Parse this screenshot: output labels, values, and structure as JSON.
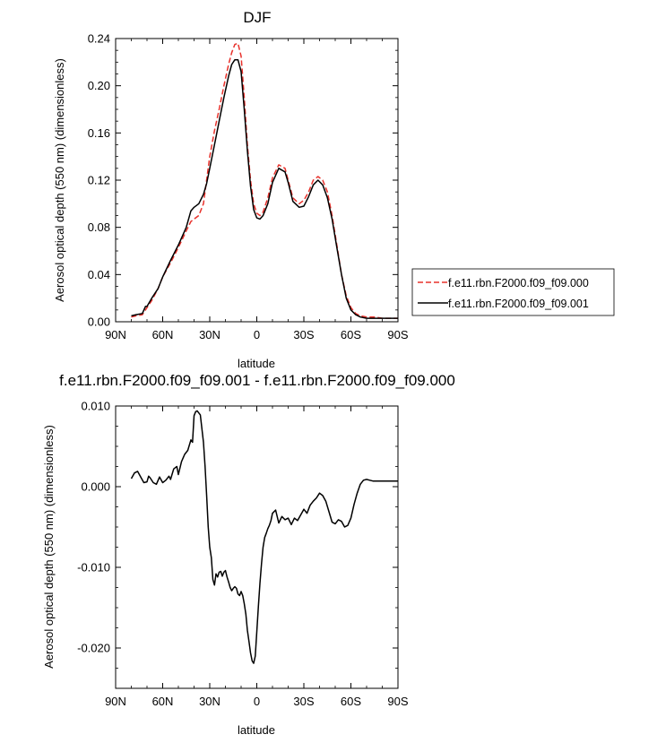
{
  "chart_data": [
    {
      "type": "line",
      "title": "DJF",
      "xlabel": "latitude",
      "ylabel": "Aerosol optical depth (550 nm) (dimensionless)",
      "xlim": [
        90,
        -90
      ],
      "ylim": [
        0,
        0.24
      ],
      "xticks": [
        90,
        60,
        30,
        0,
        -30,
        -60,
        -90
      ],
      "xtick_labels": [
        "90N",
        "60N",
        "30N",
        "0",
        "30S",
        "60S",
        "90S"
      ],
      "yticks": [
        0,
        0.04,
        0.08,
        0.12,
        0.16,
        0.2,
        0.24
      ],
      "ytick_labels": [
        "0.00",
        "0.04",
        "0.08",
        "0.12",
        "0.16",
        "0.20",
        "0.24"
      ],
      "legend_position": "right",
      "series": [
        {
          "name": "f.e11.rbn.F2000.f09_f09.000",
          "color": "#e8322c",
          "dash": "dashed",
          "x": [
            80,
            77,
            73,
            70,
            67,
            63,
            60,
            55,
            50,
            45,
            42,
            40,
            37,
            34,
            32,
            30,
            27,
            24,
            21,
            18,
            16,
            14,
            12,
            10,
            8,
            6,
            4,
            2,
            0,
            -2,
            -4,
            -7,
            -10,
            -14,
            -18,
            -20,
            -23,
            -27,
            -30,
            -33,
            -36,
            -39,
            -42,
            -45,
            -48,
            -51,
            -54,
            -57,
            -60,
            -63,
            -66,
            -70,
            -75,
            -80,
            -85,
            -90
          ],
          "y": [
            0.004,
            0.005,
            0.006,
            0.012,
            0.018,
            0.028,
            0.038,
            0.05,
            0.063,
            0.077,
            0.085,
            0.087,
            0.09,
            0.1,
            0.12,
            0.14,
            0.162,
            0.18,
            0.2,
            0.218,
            0.228,
            0.235,
            0.236,
            0.225,
            0.19,
            0.15,
            0.12,
            0.1,
            0.092,
            0.09,
            0.093,
            0.105,
            0.122,
            0.133,
            0.13,
            0.12,
            0.105,
            0.1,
            0.103,
            0.11,
            0.12,
            0.123,
            0.12,
            0.11,
            0.09,
            0.065,
            0.04,
            0.022,
            0.012,
            0.007,
            0.005,
            0.004,
            0.004,
            0.003,
            0.003,
            0.003
          ]
        },
        {
          "name": "f.e11.rbn.F2000.f09_f09.001",
          "color": "#000000",
          "dash": "solid",
          "x": [
            80,
            77,
            73,
            71,
            70,
            67,
            63,
            60,
            55,
            50,
            45,
            42,
            40,
            37,
            34,
            32,
            30,
            27,
            24,
            21,
            18,
            16,
            14,
            12,
            10,
            8,
            6,
            4,
            2,
            0,
            -2,
            -4,
            -7,
            -10,
            -14,
            -18,
            -20,
            -23,
            -27,
            -30,
            -33,
            -36,
            -39,
            -42,
            -45,
            -48,
            -51,
            -54,
            -57,
            -60,
            -63,
            -66,
            -70,
            -75,
            -80,
            -85,
            -90
          ],
          "y": [
            0.005,
            0.006,
            0.007,
            0.013,
            0.013,
            0.02,
            0.028,
            0.038,
            0.052,
            0.065,
            0.08,
            0.094,
            0.097,
            0.1,
            0.108,
            0.117,
            0.13,
            0.15,
            0.17,
            0.19,
            0.208,
            0.218,
            0.222,
            0.222,
            0.212,
            0.18,
            0.145,
            0.115,
            0.095,
            0.088,
            0.087,
            0.09,
            0.1,
            0.118,
            0.13,
            0.127,
            0.118,
            0.102,
            0.097,
            0.098,
            0.106,
            0.116,
            0.12,
            0.116,
            0.105,
            0.087,
            0.063,
            0.04,
            0.02,
            0.01,
            0.006,
            0.004,
            0.003,
            0.003,
            0.003,
            0.003,
            0.003
          ]
        }
      ]
    },
    {
      "type": "line",
      "title": "f.e11.rbn.F2000.f09_f09.001 - f.e11.rbn.F2000.f09_f09.000",
      "xlabel": "latitude",
      "ylabel": "Aerosol optical depth (550 nm) (dimensionless)",
      "xlim": [
        90,
        -90
      ],
      "ylim": [
        -0.025,
        0.01
      ],
      "xticks": [
        90,
        60,
        30,
        0,
        -30,
        -60,
        -90
      ],
      "xtick_labels": [
        "90N",
        "60N",
        "30N",
        "0",
        "30S",
        "60S",
        "90S"
      ],
      "yticks": [
        0.01,
        0,
        -0.01,
        -0.02
      ],
      "ytick_labels": [
        "0.010",
        "0.000",
        "-0.010",
        "-0.020"
      ],
      "series": [
        {
          "color": "#000000",
          "dash": "solid",
          "x": [
            80,
            78,
            76,
            74,
            72,
            70,
            69,
            68,
            66,
            64,
            62,
            60,
            58,
            56,
            55,
            53,
            51,
            50,
            48,
            46,
            44,
            42,
            41,
            40,
            39,
            38,
            36,
            34,
            33,
            32,
            31,
            30,
            29,
            28,
            27,
            26,
            25,
            24,
            23,
            22,
            21,
            20,
            19,
            18,
            17,
            16,
            15,
            14,
            13,
            12,
            11,
            10,
            9,
            8,
            7,
            6,
            5,
            4,
            3,
            2,
            1,
            0,
            -1,
            -2,
            -3,
            -4,
            -5,
            -6,
            -7,
            -8,
            -9,
            -10,
            -12,
            -14,
            -16,
            -18,
            -20,
            -22,
            -24,
            -26,
            -28,
            -30,
            -32,
            -34,
            -36,
            -38,
            -40,
            -42,
            -44,
            -46,
            -48,
            -50,
            -52,
            -54,
            -56,
            -58,
            -60,
            -62,
            -64,
            -66,
            -68,
            -70,
            -72,
            -74,
            -76,
            -78,
            -80,
            -85,
            -90
          ],
          "y": [
            0.001,
            0.0017,
            0.0019,
            0.0012,
            0.0005,
            0.0006,
            0.0013,
            0.0011,
            0.0005,
            0.0003,
            0.0012,
            0.0005,
            0.0008,
            0.0013,
            0.0009,
            0.0022,
            0.0025,
            0.0015,
            0.0031,
            0.004,
            0.0045,
            0.0058,
            0.0055,
            0.0088,
            0.0093,
            0.0094,
            0.0089,
            0.0055,
            0.0025,
            -0.001,
            -0.005,
            -0.0075,
            -0.0088,
            -0.0115,
            -0.0122,
            -0.0108,
            -0.0112,
            -0.0106,
            -0.0105,
            -0.0111,
            -0.0106,
            -0.0104,
            -0.0112,
            -0.0118,
            -0.0125,
            -0.0129,
            -0.0126,
            -0.0124,
            -0.0126,
            -0.0133,
            -0.0135,
            -0.013,
            -0.0135,
            -0.0145,
            -0.0158,
            -0.0178,
            -0.0192,
            -0.0206,
            -0.0216,
            -0.0219,
            -0.021,
            -0.018,
            -0.0148,
            -0.012,
            -0.0095,
            -0.0075,
            -0.0063,
            -0.0058,
            -0.0052,
            -0.0048,
            -0.0042,
            -0.0033,
            -0.0029,
            -0.0045,
            -0.0037,
            -0.0041,
            -0.0039,
            -0.0047,
            -0.0039,
            -0.0042,
            -0.0035,
            -0.0028,
            -0.0033,
            -0.0023,
            -0.0018,
            -0.0014,
            -0.0008,
            -0.0011,
            -0.0018,
            -0.0031,
            -0.0044,
            -0.0046,
            -0.0041,
            -0.0043,
            -0.005,
            -0.0048,
            -0.0039,
            -0.0022,
            -0.0008,
            0.0003,
            0.0008,
            0.0009,
            0.0008,
            0.0007,
            0.0007,
            0.0007,
            0.0007,
            0.0007,
            0.0007
          ]
        }
      ]
    }
  ]
}
